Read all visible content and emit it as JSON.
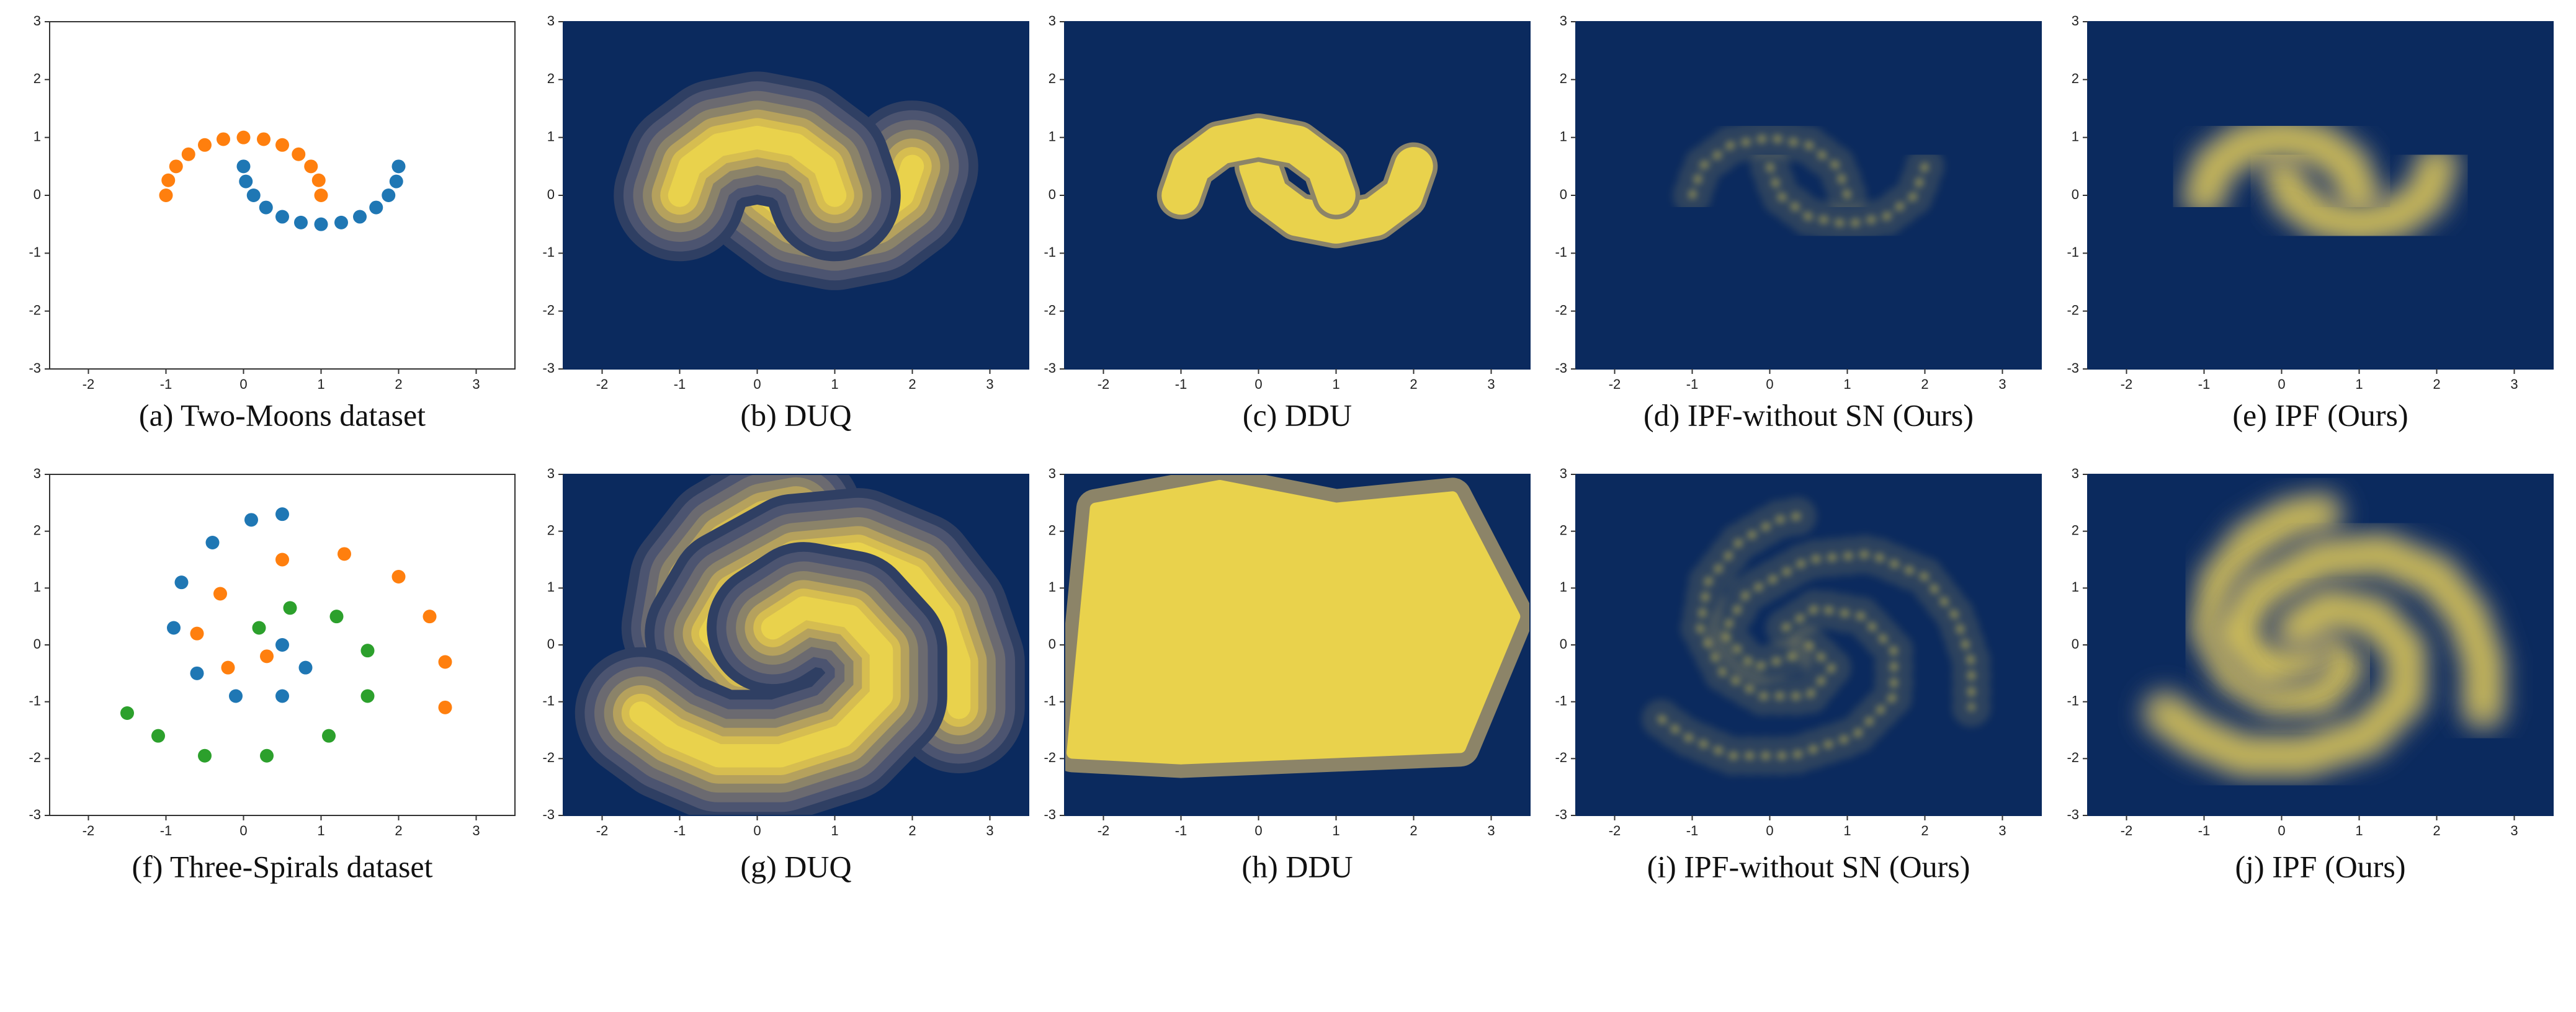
{
  "chart_data": [
    {
      "type": "scatter",
      "caption": "(a) Two-Moons dataset",
      "xlim": [
        -2.5,
        3.5
      ],
      "ylim": [
        -3,
        3
      ],
      "xticks": [
        -2,
        -1,
        0,
        1,
        2,
        3
      ],
      "yticks": [
        -3,
        -2,
        -1,
        0,
        1,
        2,
        3
      ],
      "series": [
        {
          "color": "#1f77b4",
          "x": [
            0.0,
            0.03,
            0.13,
            0.29,
            0.5,
            0.74,
            1.0,
            1.26,
            1.5,
            1.71,
            1.87,
            1.97,
            2.0
          ],
          "y": [
            0.5,
            0.24,
            0.0,
            -0.21,
            -0.37,
            -0.47,
            -0.5,
            -0.47,
            -0.37,
            -0.21,
            0.0,
            0.24,
            0.5
          ]
        },
        {
          "color": "#ff7f0e",
          "x": [
            1.0,
            0.97,
            0.87,
            0.71,
            0.5,
            0.26,
            0.0,
            -0.26,
            -0.5,
            -0.71,
            -0.87,
            -0.97,
            -1.0
          ],
          "y": [
            0.0,
            0.26,
            0.5,
            0.71,
            0.87,
            0.97,
            1.0,
            0.97,
            0.87,
            0.71,
            0.5,
            0.26,
            0.0
          ]
        }
      ]
    },
    {
      "type": "contour",
      "caption": "(b) DUQ",
      "xlim": [
        -2.5,
        3.5
      ],
      "ylim": [
        -3,
        3
      ],
      "xticks": [
        -2,
        -1,
        0,
        1,
        2,
        3
      ],
      "yticks": [
        -3,
        -2,
        -1,
        0,
        1,
        2,
        3
      ],
      "ridges": [
        {
          "x": [
            0.0,
            0.13,
            0.5,
            1.0,
            1.5,
            1.87,
            2.0
          ],
          "y": [
            0.5,
            0.0,
            -0.37,
            -0.5,
            -0.37,
            0.0,
            0.5
          ]
        },
        {
          "x": [
            1.0,
            0.87,
            0.5,
            0.0,
            -0.5,
            -0.87,
            -1.0
          ],
          "y": [
            0.0,
            0.5,
            0.87,
            1.0,
            0.87,
            0.5,
            0.0
          ]
        }
      ]
    },
    {
      "type": "solid",
      "caption": "(c) DDU",
      "xlim": [
        -2.5,
        3.5
      ],
      "ylim": [
        -3,
        3
      ],
      "xticks": [
        -2,
        -1,
        0,
        1,
        2,
        3
      ],
      "yticks": [
        -3,
        -2,
        -1,
        0,
        1,
        2,
        3
      ],
      "ridges": [
        {
          "x": [
            0.0,
            0.13,
            0.5,
            1.0,
            1.5,
            1.87,
            2.0
          ],
          "y": [
            0.5,
            0.0,
            -0.37,
            -0.5,
            -0.37,
            0.0,
            0.5
          ]
        },
        {
          "x": [
            1.0,
            0.87,
            0.5,
            0.0,
            -0.5,
            -0.87,
            -1.0
          ],
          "y": [
            0.0,
            0.5,
            0.87,
            1.0,
            0.87,
            0.5,
            0.0
          ]
        }
      ]
    },
    {
      "type": "sparse",
      "caption": "(d) IPF-without SN (Ours)",
      "xlim": [
        -2.5,
        3.5
      ],
      "ylim": [
        -3,
        3
      ],
      "xticks": [
        -2,
        -1,
        0,
        1,
        2,
        3
      ],
      "yticks": [
        -3,
        -2,
        -1,
        0,
        1,
        2,
        3
      ],
      "ridges": [
        {
          "x": [
            0.0,
            0.13,
            0.5,
            1.0,
            1.5,
            1.87,
            2.0
          ],
          "y": [
            0.5,
            0.0,
            -0.37,
            -0.5,
            -0.37,
            0.0,
            0.5
          ]
        },
        {
          "x": [
            1.0,
            0.87,
            0.5,
            0.0,
            -0.5,
            -0.87,
            -1.0
          ],
          "y": [
            0.0,
            0.5,
            0.87,
            1.0,
            0.87,
            0.5,
            0.0
          ]
        }
      ]
    },
    {
      "type": "heatmap",
      "caption": "(e) IPF (Ours)",
      "xlim": [
        -2.5,
        3.5
      ],
      "ylim": [
        -3,
        3
      ],
      "xticks": [
        -2,
        -1,
        0,
        1,
        2,
        3
      ],
      "yticks": [
        -3,
        -2,
        -1,
        0,
        1,
        2,
        3
      ],
      "ridges": [
        {
          "x": [
            0.0,
            0.13,
            0.5,
            1.0,
            1.5,
            1.87,
            2.0
          ],
          "y": [
            0.5,
            0.0,
            -0.37,
            -0.5,
            -0.37,
            0.0,
            0.5
          ]
        },
        {
          "x": [
            1.0,
            0.87,
            0.5,
            0.0,
            -0.5,
            -0.87,
            -1.0
          ],
          "y": [
            0.0,
            0.5,
            0.87,
            1.0,
            0.87,
            0.5,
            0.0
          ]
        }
      ]
    },
    {
      "type": "scatter",
      "caption": "(f) Three-Spirals dataset",
      "xlim": [
        -2.5,
        3.5
      ],
      "ylim": [
        -3,
        3
      ],
      "xticks": [
        -2,
        -1,
        0,
        1,
        2,
        3
      ],
      "yticks": [
        -3,
        -2,
        -1,
        0,
        1,
        2,
        3
      ],
      "series": [
        {
          "color": "#1f77b4",
          "x": [
            0.5,
            0.8,
            0.5,
            -0.1,
            -0.6,
            -0.9,
            -0.8,
            -0.4,
            0.1,
            0.5
          ],
          "y": [
            0.0,
            -0.4,
            -0.9,
            -0.9,
            -0.5,
            0.3,
            1.1,
            1.8,
            2.2,
            2.3
          ]
        },
        {
          "color": "#ff7f0e",
          "x": [
            0.3,
            -0.2,
            -0.6,
            -0.3,
            0.5,
            1.3,
            2.0,
            2.4,
            2.6,
            2.6
          ],
          "y": [
            -0.2,
            -0.4,
            0.2,
            0.9,
            1.5,
            1.6,
            1.2,
            0.5,
            -0.3,
            -1.1
          ]
        },
        {
          "color": "#2ca02c",
          "x": [
            0.2,
            0.6,
            1.2,
            1.6,
            1.6,
            1.1,
            0.3,
            -0.5,
            -1.1,
            -1.5
          ],
          "y": [
            0.3,
            0.65,
            0.5,
            -0.1,
            -0.9,
            -1.6,
            -1.95,
            -1.95,
            -1.6,
            -1.2
          ]
        }
      ]
    },
    {
      "type": "contour",
      "caption": "(g) DUQ",
      "xlim": [
        -2.5,
        3.5
      ],
      "ylim": [
        -3,
        3
      ],
      "xticks": [
        -2,
        -1,
        0,
        1,
        2,
        3
      ],
      "yticks": [
        -3,
        -2,
        -1,
        0,
        1,
        2,
        3
      ],
      "ridges": [
        {
          "x": [
            0.5,
            0.8,
            0.5,
            -0.1,
            -0.6,
            -0.9,
            -0.8,
            -0.4,
            0.1,
            0.5
          ],
          "y": [
            0.0,
            -0.4,
            -0.9,
            -0.9,
            -0.5,
            0.3,
            1.1,
            1.8,
            2.2,
            2.3
          ]
        },
        {
          "x": [
            0.3,
            -0.2,
            -0.6,
            -0.3,
            0.5,
            1.3,
            2.0,
            2.4,
            2.6,
            2.6
          ],
          "y": [
            -0.2,
            -0.4,
            0.2,
            0.9,
            1.5,
            1.6,
            1.2,
            0.5,
            -0.3,
            -1.1
          ]
        },
        {
          "x": [
            0.2,
            0.6,
            1.2,
            1.6,
            1.6,
            1.1,
            0.3,
            -0.5,
            -1.1,
            -1.5
          ],
          "y": [
            0.3,
            0.65,
            0.5,
            -0.1,
            -0.9,
            -1.6,
            -1.95,
            -1.95,
            -1.6,
            -1.2
          ]
        }
      ]
    },
    {
      "type": "blob",
      "caption": "(h) DDU",
      "xlim": [
        -2.5,
        3.5
      ],
      "ylim": [
        -3,
        3
      ],
      "xticks": [
        -2,
        -1,
        0,
        1,
        2,
        3
      ],
      "yticks": [
        -3,
        -2,
        -1,
        0,
        1,
        2,
        3
      ],
      "ridges": [
        {
          "x": [
            -2.4,
            -2.1,
            -0.5,
            1.0,
            2.5,
            3.3,
            2.6,
            -1.0
          ],
          "y": [
            -1.9,
            2.4,
            2.8,
            2.4,
            2.6,
            0.5,
            -1.8,
            -2.0
          ]
        }
      ]
    },
    {
      "type": "sparse",
      "caption": "(i) IPF-without SN (Ours)",
      "xlim": [
        -2.5,
        3.5
      ],
      "ylim": [
        -3,
        3
      ],
      "xticks": [
        -2,
        -1,
        0,
        1,
        2,
        3
      ],
      "yticks": [
        -3,
        -2,
        -1,
        0,
        1,
        2,
        3
      ],
      "ridges": [
        {
          "x": [
            0.5,
            0.8,
            0.5,
            -0.1,
            -0.6,
            -0.9,
            -0.8,
            -0.4,
            0.1,
            0.5
          ],
          "y": [
            0.0,
            -0.4,
            -0.9,
            -0.9,
            -0.5,
            0.3,
            1.1,
            1.8,
            2.2,
            2.3
          ]
        },
        {
          "x": [
            0.3,
            -0.2,
            -0.6,
            -0.3,
            0.5,
            1.3,
            2.0,
            2.4,
            2.6,
            2.6
          ],
          "y": [
            -0.2,
            -0.4,
            0.2,
            0.9,
            1.5,
            1.6,
            1.2,
            0.5,
            -0.3,
            -1.1
          ]
        },
        {
          "x": [
            0.2,
            0.6,
            1.2,
            1.6,
            1.6,
            1.1,
            0.3,
            -0.5,
            -1.1,
            -1.5
          ],
          "y": [
            0.3,
            0.65,
            0.5,
            -0.1,
            -0.9,
            -1.6,
            -1.95,
            -1.95,
            -1.6,
            -1.2
          ]
        }
      ]
    },
    {
      "type": "heatmap",
      "caption": "(j) IPF (Ours)",
      "xlim": [
        -2.5,
        3.5
      ],
      "ylim": [
        -3,
        3
      ],
      "xticks": [
        -2,
        -1,
        0,
        1,
        2,
        3
      ],
      "yticks": [
        -3,
        -2,
        -1,
        0,
        1,
        2,
        3
      ],
      "ridges": [
        {
          "x": [
            0.5,
            0.8,
            0.5,
            -0.1,
            -0.6,
            -0.9,
            -0.8,
            -0.4,
            0.1,
            0.5
          ],
          "y": [
            0.0,
            -0.4,
            -0.9,
            -0.9,
            -0.5,
            0.3,
            1.1,
            1.8,
            2.2,
            2.3
          ]
        },
        {
          "x": [
            0.3,
            -0.2,
            -0.6,
            -0.3,
            0.5,
            1.3,
            2.0,
            2.4,
            2.6,
            2.6
          ],
          "y": [
            -0.2,
            -0.4,
            0.2,
            0.9,
            1.5,
            1.6,
            1.2,
            0.5,
            -0.3,
            -1.1
          ]
        },
        {
          "x": [
            0.2,
            0.6,
            1.2,
            1.6,
            1.6,
            1.1,
            0.3,
            -0.5,
            -1.1,
            -1.5
          ],
          "y": [
            0.3,
            0.65,
            0.5,
            -0.1,
            -0.9,
            -1.6,
            -1.95,
            -1.95,
            -1.6,
            -1.2
          ]
        }
      ]
    }
  ]
}
